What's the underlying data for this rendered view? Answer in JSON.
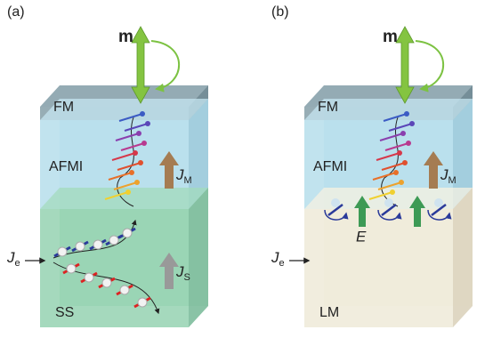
{
  "panels": [
    {
      "label": "(a)",
      "magnetization": "m",
      "layers": [
        "FM",
        "AFMI",
        "SS"
      ],
      "magnon_current": {
        "symbol": "J",
        "subscript": "M"
      },
      "electron_current": {
        "symbol": "J",
        "subscript": "e"
      },
      "spin_current": {
        "symbol": "J",
        "subscript": "S"
      }
    },
    {
      "label": "(b)",
      "magnetization": "m",
      "layers": [
        "FM",
        "AFMI",
        "LM"
      ],
      "magnon_current": {
        "symbol": "J",
        "subscript": "M"
      },
      "electron_current": {
        "symbol": "J",
        "subscript": "e"
      },
      "field": "E"
    }
  ]
}
